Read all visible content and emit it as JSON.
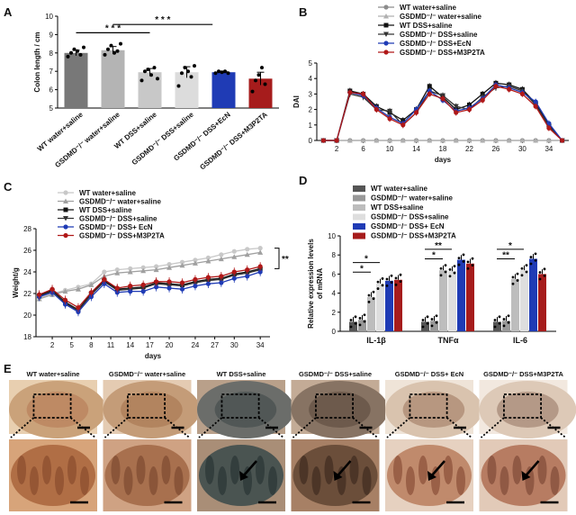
{
  "panels": {
    "A": "A",
    "B": "B",
    "C": "C",
    "D": "D",
    "E": "E"
  },
  "chart_data": [
    {
      "panel": "A",
      "type": "bar",
      "ylabel": "Colon  length / cm",
      "yticks": [
        "5",
        "6",
        "7",
        "8",
        "9",
        "10"
      ],
      "ylim": [
        5,
        10
      ],
      "categories": [
        "WT water+saline",
        "GSDMD⁻/⁻ water+saline",
        "WT DSS+saline",
        "GSDMD⁻/⁻ DSS+saline",
        "GSDMD⁻/⁻ DSS+EcN",
        "GSDMD⁻/⁻ DSS+M3P2TA"
      ],
      "values": [
        8.0,
        8.15,
        6.95,
        6.95,
        6.95,
        6.6
      ],
      "errors": [
        0.15,
        0.2,
        0.2,
        0.3,
        0.05,
        0.35
      ],
      "colors": [
        "#787878",
        "#b4b4b4",
        "#c8c8c8",
        "#dcdcdc",
        "#1f3bb5",
        "#a61c1c"
      ],
      "points": [
        [
          7.8,
          8.0,
          8.2,
          8.1,
          7.9,
          8.3
        ],
        [
          7.9,
          8.2,
          8.4,
          8.0,
          8.1,
          8.5
        ],
        [
          6.5,
          7.0,
          7.1,
          6.8,
          7.2,
          6.6
        ],
        [
          6.2,
          6.9,
          7.2,
          7.0,
          6.7,
          7.3
        ],
        [
          6.9,
          7.0,
          6.95,
          7.0,
          6.9
        ],
        [
          5.9,
          6.5,
          6.8,
          7.2,
          6.3
        ]
      ],
      "significance": [
        {
          "label": "* * *"
        },
        {
          "label": "* * *"
        }
      ]
    },
    {
      "panel": "B",
      "type": "line",
      "xlabel": "days",
      "ylabel": "DAI",
      "xticks": [
        "2",
        "6",
        "10",
        "14",
        "18",
        "22",
        "26",
        "30",
        "34"
      ],
      "yticks": [
        "0",
        "1",
        "2",
        "3",
        "4",
        "5"
      ],
      "xlim": [
        -1,
        37
      ],
      "ylim": [
        0,
        5
      ],
      "x": [
        0,
        2,
        4,
        6,
        8,
        10,
        12,
        14,
        16,
        18,
        20,
        22,
        24,
        26,
        28,
        30,
        32,
        34,
        36
      ],
      "series": [
        {
          "name": "WT water+saline",
          "color": "#8c8c8c",
          "marker": "circle",
          "values": [
            0,
            0,
            0,
            0,
            0,
            0,
            0,
            0,
            0,
            0,
            0,
            0,
            0,
            0,
            0,
            0,
            0,
            0,
            0
          ]
        },
        {
          "name": "GSDMD⁻/⁻ water+saline",
          "color": "#b0b0b0",
          "marker": "triangle",
          "values": [
            0,
            0,
            0,
            0,
            0,
            0,
            0,
            0,
            0,
            0,
            0,
            0,
            0,
            0,
            0,
            0,
            0,
            0,
            0
          ]
        },
        {
          "name": "WT DSS+saline",
          "color": "#111111",
          "marker": "square",
          "values": [
            0,
            0,
            3.2,
            3.0,
            2.2,
            1.8,
            1.3,
            2.0,
            3.5,
            2.8,
            2.0,
            2.3,
            3.0,
            3.7,
            3.6,
            3.3,
            2.4,
            1.0,
            0
          ]
        },
        {
          "name": "GSDMD⁻/⁻ DSS+saline",
          "color": "#333333",
          "marker": "triangle-down",
          "values": [
            0,
            0,
            3.0,
            2.8,
            2.0,
            1.9,
            1.0,
            1.8,
            3.2,
            2.9,
            2.2,
            2.0,
            2.8,
            3.4,
            3.5,
            3.2,
            2.3,
            0.9,
            0
          ]
        },
        {
          "name": "GSDMD⁻/⁻ DSS+EcN",
          "color": "#1f3bb5",
          "marker": "circle",
          "values": [
            0,
            0,
            3.1,
            2.9,
            2.1,
            1.5,
            1.1,
            2.0,
            3.2,
            2.6,
            1.9,
            2.1,
            2.7,
            3.6,
            3.4,
            3.1,
            2.5,
            1.1,
            0
          ]
        },
        {
          "name": "GSDMD⁻/⁻ DSS+M3P2TA",
          "color": "#b01818",
          "marker": "circle",
          "values": [
            0,
            0,
            3.1,
            3.0,
            2.0,
            1.4,
            1.0,
            1.8,
            3.0,
            2.7,
            1.8,
            2.0,
            2.6,
            3.5,
            3.3,
            3.0,
            2.2,
            0.8,
            0
          ]
        }
      ]
    },
    {
      "panel": "C",
      "type": "line",
      "xlabel": "days",
      "ylabel": "Weight/g",
      "xticks": [
        "2",
        "5",
        "8",
        "11",
        "14",
        "17",
        "20",
        "24",
        "27",
        "30",
        "34"
      ],
      "yticks": [
        "18",
        "20",
        "22",
        "24",
        "26",
        "28"
      ],
      "xlim": [
        -0.5,
        35.5
      ],
      "ylim": [
        18,
        28
      ],
      "x": [
        0,
        2,
        4,
        6,
        8,
        10,
        12,
        14,
        16,
        18,
        20,
        22,
        24,
        26,
        28,
        30,
        32,
        34
      ],
      "series": [
        {
          "name": "WT water+saline",
          "color": "#c8c8c8",
          "marker": "circle",
          "values": [
            21.6,
            22.0,
            22.3,
            22.6,
            22.9,
            24.0,
            24.2,
            24.3,
            24.4,
            24.5,
            24.7,
            24.9,
            25.1,
            25.3,
            25.6,
            25.9,
            26.1,
            26.2
          ]
        },
        {
          "name": "GSDMD⁻/⁻ water+saline",
          "color": "#a0a0a0",
          "marker": "triangle",
          "values": [
            21.5,
            21.9,
            22.2,
            22.4,
            22.8,
            23.6,
            23.9,
            24.0,
            24.1,
            24.2,
            24.4,
            24.6,
            24.8,
            25.0,
            25.2,
            25.4,
            25.6,
            25.8
          ]
        },
        {
          "name": "WT DSS+saline",
          "color": "#111111",
          "marker": "square",
          "values": [
            21.8,
            22.3,
            21.2,
            20.5,
            22.0,
            23.2,
            22.4,
            22.5,
            22.6,
            23.0,
            22.9,
            22.8,
            23.1,
            23.3,
            23.4,
            23.8,
            24.0,
            24.3
          ]
        },
        {
          "name": "GSDMD⁻/⁻ DSS+saline",
          "color": "#333333",
          "marker": "triangle-down",
          "values": [
            21.7,
            22.2,
            21.1,
            20.4,
            21.9,
            23.1,
            22.3,
            22.4,
            22.5,
            22.9,
            22.8,
            22.7,
            23.0,
            23.2,
            23.3,
            23.7,
            23.9,
            24.2
          ]
        },
        {
          "name": "GSDMD⁻/⁻ DSS+ EcN",
          "color": "#1f3bb5",
          "marker": "circle",
          "values": [
            21.7,
            22.1,
            21.0,
            20.3,
            21.7,
            22.9,
            22.1,
            22.2,
            22.2,
            22.6,
            22.5,
            22.4,
            22.7,
            22.9,
            23.0,
            23.4,
            23.6,
            24.0
          ]
        },
        {
          "name": "GSDMD⁻/⁻ DSS+M3P2TA",
          "color": "#b01818",
          "marker": "circle",
          "values": [
            21.9,
            22.4,
            21.4,
            20.7,
            22.1,
            23.3,
            22.5,
            22.7,
            22.8,
            23.1,
            23.1,
            23.0,
            23.3,
            23.5,
            23.6,
            24.0,
            24.2,
            24.5
          ]
        }
      ],
      "significance": "**"
    },
    {
      "panel": "D",
      "type": "bar",
      "ylabel": "Relative expression levels\nof mRNA",
      "yticks": [
        "0",
        "2",
        "4",
        "6",
        "8",
        "10"
      ],
      "ylim": [
        0,
        10
      ],
      "categories": [
        "IL-1β",
        "TNFα",
        "IL-6"
      ],
      "series": [
        {
          "name": "WT water+saline",
          "color": "#555555",
          "values": [
            1.0,
            1.0,
            1.0
          ]
        },
        {
          "name": "GSDMD⁻/⁻ water+saline",
          "color": "#999999",
          "values": [
            1.2,
            1.1,
            1.1
          ]
        },
        {
          "name": "WT DSS+saline",
          "color": "#bdbdbd",
          "values": [
            3.6,
            6.4,
            5.5
          ]
        },
        {
          "name": "GSDMD⁻/⁻ DSS+saline",
          "color": "#dedede",
          "values": [
            5.0,
            6.3,
            6.4
          ]
        },
        {
          "name": "GSDMD⁻/⁻ DSS+ EcN",
          "color": "#1f3bb5",
          "values": [
            5.3,
            7.5,
            7.6
          ]
        },
        {
          "name": "GSDMD⁻/⁻ DSS+M3P2TA",
          "color": "#a61c1c",
          "values": [
            5.4,
            7.1,
            6.0
          ]
        }
      ],
      "significance": [
        "*",
        "*",
        "**",
        "*",
        "*",
        "**"
      ]
    }
  ],
  "histology": {
    "labels": [
      "WT water+saline",
      "GSDMD⁻/⁻ water+saline",
      "WT DSS+saline",
      "GSDMD⁻/⁻ DSS+saline",
      "GSDMD⁻/⁻ DSS+ EcN",
      "GSDMD⁻/⁻ DSS+M3P2TA"
    ]
  }
}
